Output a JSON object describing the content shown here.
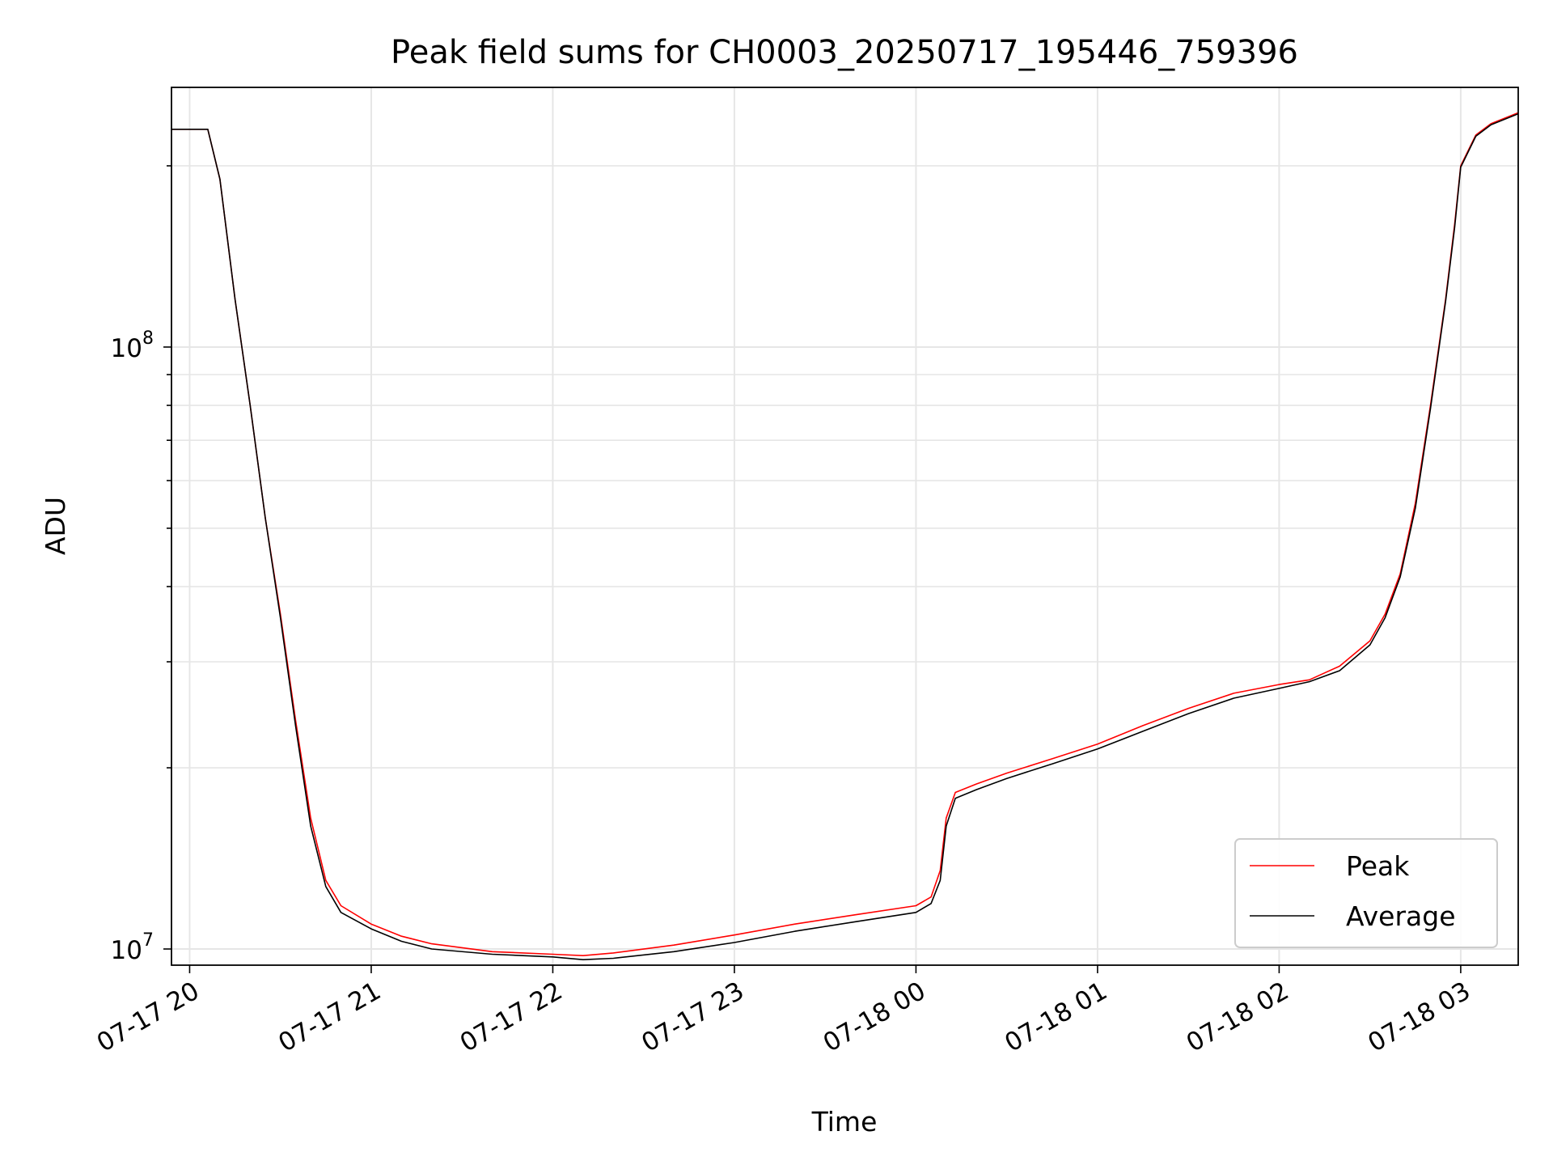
{
  "chart_data": {
    "type": "line",
    "title": "Peak field sums for CH0003_20250717_195446_759396",
    "xlabel": "Time",
    "ylabel": "ADU",
    "x_axis": {
      "kind": "datetime",
      "range": [
        "2025-07-17 19:54",
        "2025-07-18 03:19"
      ],
      "ticks": [
        {
          "value": "2025-07-17 20:00",
          "label": "07-17 20"
        },
        {
          "value": "2025-07-17 21:00",
          "label": "07-17 21"
        },
        {
          "value": "2025-07-17 22:00",
          "label": "07-17 22"
        },
        {
          "value": "2025-07-17 23:00",
          "label": "07-17 23"
        },
        {
          "value": "2025-07-18 00:00",
          "label": "07-18 00"
        },
        {
          "value": "2025-07-18 01:00",
          "label": "07-18 01"
        },
        {
          "value": "2025-07-18 02:00",
          "label": "07-18 02"
        },
        {
          "value": "2025-07-18 03:00",
          "label": "07-18 03"
        }
      ]
    },
    "y_axis": {
      "scale": "log",
      "range": [
        9400000,
        270000000
      ],
      "major_ticks": [
        {
          "value": 10000000,
          "base": "10",
          "exp": "7"
        },
        {
          "value": 100000000,
          "base": "10",
          "exp": "8"
        }
      ]
    },
    "grid": true,
    "legend": {
      "placement": "lower-right"
    },
    "series": [
      {
        "name": "Peak",
        "color": "#ff0000",
        "x": [
          "2025-07-17 19:54",
          "2025-07-17 20:06",
          "2025-07-17 20:10",
          "2025-07-17 20:15",
          "2025-07-17 20:20",
          "2025-07-17 20:25",
          "2025-07-17 20:30",
          "2025-07-17 20:35",
          "2025-07-17 20:40",
          "2025-07-17 20:45",
          "2025-07-17 20:50",
          "2025-07-17 21:00",
          "2025-07-17 21:10",
          "2025-07-17 21:20",
          "2025-07-17 21:40",
          "2025-07-17 22:00",
          "2025-07-17 22:10",
          "2025-07-17 22:20",
          "2025-07-17 22:40",
          "2025-07-17 23:00",
          "2025-07-17 23:20",
          "2025-07-17 23:40",
          "2025-07-18 00:00",
          "2025-07-18 00:05",
          "2025-07-18 00:08",
          "2025-07-18 00:10",
          "2025-07-18 00:13",
          "2025-07-18 00:20",
          "2025-07-18 00:30",
          "2025-07-18 00:45",
          "2025-07-18 01:00",
          "2025-07-18 01:15",
          "2025-07-18 01:30",
          "2025-07-18 01:45",
          "2025-07-18 02:00",
          "2025-07-18 02:10",
          "2025-07-18 02:20",
          "2025-07-18 02:30",
          "2025-07-18 02:35",
          "2025-07-18 02:40",
          "2025-07-18 02:45",
          "2025-07-18 02:50",
          "2025-07-18 02:55",
          "2025-07-18 02:58",
          "2025-07-18 03:00",
          "2025-07-18 03:05",
          "2025-07-18 03:10",
          "2025-07-18 03:19"
        ],
        "y": [
          230000000,
          230000000,
          190000000,
          120000000,
          80000000,
          52000000,
          36000000,
          24000000,
          16500000,
          13000000,
          11800000,
          11000000,
          10500000,
          10200000,
          9900000,
          9800000,
          9750000,
          9850000,
          10150000,
          10550000,
          11000000,
          11400000,
          11800000,
          12200000,
          13500000,
          16500000,
          18200000,
          18800000,
          19600000,
          20700000,
          21900000,
          23500000,
          25100000,
          26600000,
          27500000,
          28000000,
          29500000,
          32500000,
          36000000,
          42000000,
          55000000,
          80000000,
          120000000,
          160000000,
          200000000,
          225000000,
          235000000,
          245000000
        ]
      },
      {
        "name": "Average",
        "color": "#000000",
        "x": [
          "2025-07-17 19:54",
          "2025-07-17 20:06",
          "2025-07-17 20:10",
          "2025-07-17 20:15",
          "2025-07-17 20:20",
          "2025-07-17 20:25",
          "2025-07-17 20:30",
          "2025-07-17 20:35",
          "2025-07-17 20:40",
          "2025-07-17 20:45",
          "2025-07-17 20:50",
          "2025-07-17 21:00",
          "2025-07-17 21:10",
          "2025-07-17 21:20",
          "2025-07-17 21:40",
          "2025-07-17 22:00",
          "2025-07-17 22:10",
          "2025-07-17 22:20",
          "2025-07-17 22:40",
          "2025-07-17 23:00",
          "2025-07-17 23:20",
          "2025-07-17 23:40",
          "2025-07-18 00:00",
          "2025-07-18 00:05",
          "2025-07-18 00:08",
          "2025-07-18 00:10",
          "2025-07-18 00:13",
          "2025-07-18 00:20",
          "2025-07-18 00:30",
          "2025-07-18 00:45",
          "2025-07-18 01:00",
          "2025-07-18 01:15",
          "2025-07-18 01:30",
          "2025-07-18 01:45",
          "2025-07-18 02:00",
          "2025-07-18 02:10",
          "2025-07-18 02:20",
          "2025-07-18 02:30",
          "2025-07-18 02:35",
          "2025-07-18 02:40",
          "2025-07-18 02:45",
          "2025-07-18 02:50",
          "2025-07-18 02:55",
          "2025-07-18 02:58",
          "2025-07-18 03:00",
          "2025-07-18 03:05",
          "2025-07-18 03:10",
          "2025-07-18 03:19"
        ],
        "y": [
          230000000,
          230000000,
          190000000,
          120000000,
          80000000,
          52000000,
          35500000,
          23500000,
          16000000,
          12700000,
          11500000,
          10800000,
          10300000,
          10000000,
          9800000,
          9700000,
          9600000,
          9650000,
          9900000,
          10250000,
          10700000,
          11100000,
          11500000,
          11900000,
          13000000,
          16000000,
          17800000,
          18400000,
          19200000,
          20300000,
          21500000,
          23000000,
          24600000,
          26100000,
          27100000,
          27800000,
          29000000,
          32000000,
          35500000,
          41500000,
          54000000,
          79000000,
          119000000,
          158000000,
          199000000,
          224000000,
          234000000,
          244000000
        ]
      }
    ]
  }
}
